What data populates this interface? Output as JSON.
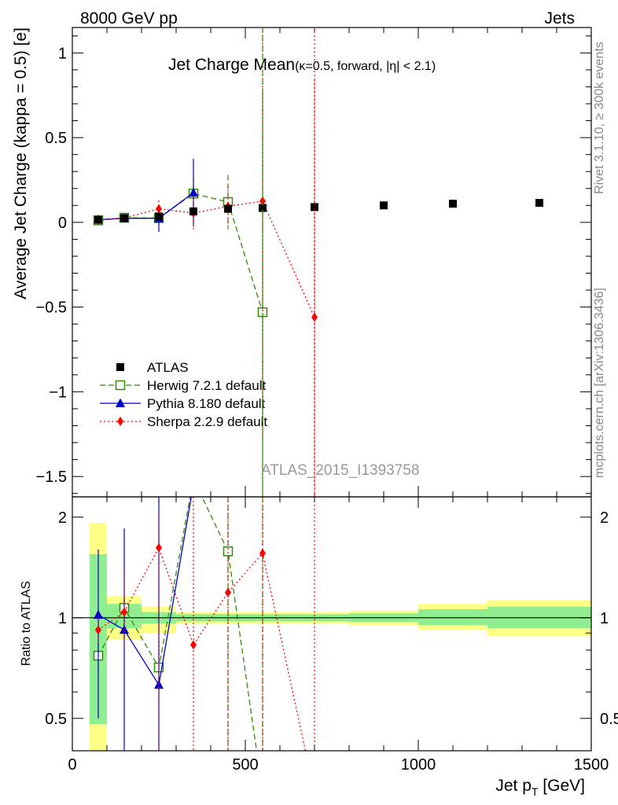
{
  "header": {
    "left": "8000 GeV pp",
    "right": "Jets"
  },
  "side_labels": {
    "rivet": "Rivet 3.1.10, ≥ 300k events",
    "mcplots": "mcplots.cern.ch [arXiv:1306.3436]"
  },
  "watermark": "ATLAS_2015_I1393758",
  "colors": {
    "atlas": "#000000",
    "herwig": "#2e8b08",
    "pythia": "#0000cc",
    "sherpa": "#ff0000",
    "band_inner": "#90ee90",
    "band_outer": "#ffff88"
  },
  "chart_data": [
    {
      "type": "scatter",
      "panel": "main",
      "title": "Jet Charge Mean",
      "subtitle": "(κ=0.5, forward, |η| < 2.1)",
      "ylabel": "Average Jet Charge (kappa = 0.5) [e]",
      "xlim": [
        0,
        1500
      ],
      "ylim": [
        -1.62,
        1.15
      ],
      "yticks": [
        {
          "v": 1,
          "label": "1"
        },
        {
          "v": 0.5,
          "label": "0.5"
        },
        {
          "v": 0,
          "label": "0"
        },
        {
          "v": -0.5,
          "label": "−0.5"
        },
        {
          "v": -1,
          "label": "−1"
        },
        {
          "v": -1.5,
          "label": "−1.5"
        }
      ],
      "legend_position": "lower-left",
      "series": [
        {
          "name": "ATLAS",
          "style": "data",
          "x": [
            75,
            150,
            250,
            350,
            450,
            550,
            700,
            900,
            1100,
            1350
          ],
          "y": [
            0.015,
            0.025,
            0.035,
            0.065,
            0.08,
            0.085,
            0.09,
            0.1,
            0.11,
            0.115
          ],
          "yerr": [
            0.005,
            0.005,
            0.005,
            0.005,
            0.005,
            0.005,
            0.005,
            0.005,
            0.005,
            0.005
          ]
        },
        {
          "name": "Herwig 7.2.1 default",
          "style": "herwig",
          "x": [
            75,
            150,
            250,
            350,
            450,
            550
          ],
          "y": [
            0.012,
            0.027,
            0.025,
            0.17,
            0.12,
            -0.53
          ],
          "yerr": [
            0.01,
            0.015,
            0.05,
            0.1,
            0.16,
            1.3
          ]
        },
        {
          "name": "Pythia 8.180 default",
          "style": "pythia",
          "x": [
            75,
            150,
            250,
            350
          ],
          "y": [
            0.016,
            0.024,
            0.024,
            0.175
          ],
          "yerr": [
            0.01,
            0.02,
            0.08,
            0.2
          ]
        },
        {
          "name": "Sherpa 2.2.9 default",
          "style": "sherpa",
          "x": [
            75,
            150,
            250,
            350,
            450,
            550,
            700
          ],
          "y": [
            0.013,
            0.025,
            0.08,
            0.055,
            0.095,
            0.125,
            -0.56
          ],
          "yerr": [
            0.01,
            0.012,
            0.05,
            0.1,
            0.12,
            1.4,
            1.4
          ]
        }
      ]
    },
    {
      "type": "line",
      "panel": "ratio",
      "ylabel": "Ratio to ATLAS",
      "xlabel": "Jet p_T [GeV]",
      "xlim": [
        0,
        1500
      ],
      "ylim": [
        0.4,
        2.3
      ],
      "log_y": true,
      "yticks": [
        {
          "v": 0.5,
          "label": "0.5"
        },
        {
          "v": 1,
          "label": "1"
        },
        {
          "v": 2,
          "label": "2"
        }
      ],
      "xticks": [
        {
          "v": 0,
          "label": "0"
        },
        {
          "v": 500,
          "label": "500"
        },
        {
          "v": 1000,
          "label": "1000"
        },
        {
          "v": 1500,
          "label": "1500"
        }
      ],
      "bins": [
        {
          "lo": 50,
          "hi": 100,
          "inner": [
            0.48,
            1.55
          ],
          "outer": [
            0.4,
            1.92
          ]
        },
        {
          "lo": 100,
          "hi": 200,
          "inner": [
            0.93,
            1.1
          ],
          "outer": [
            0.86,
            1.16
          ]
        },
        {
          "lo": 200,
          "hi": 300,
          "inner": [
            0.96,
            1.04
          ],
          "outer": [
            0.9,
            1.08
          ]
        },
        {
          "lo": 300,
          "hi": 400,
          "inner": [
            0.975,
            1.025
          ],
          "outer": [
            0.96,
            1.04
          ]
        },
        {
          "lo": 400,
          "hi": 600,
          "inner": [
            0.975,
            1.025
          ],
          "outer": [
            0.96,
            1.04
          ]
        },
        {
          "lo": 600,
          "hi": 800,
          "inner": [
            0.975,
            1.025
          ],
          "outer": [
            0.96,
            1.04
          ]
        },
        {
          "lo": 800,
          "hi": 1000,
          "inner": [
            0.97,
            1.03
          ],
          "outer": [
            0.95,
            1.05
          ]
        },
        {
          "lo": 1000,
          "hi": 1200,
          "inner": [
            0.95,
            1.06
          ],
          "outer": [
            0.92,
            1.1
          ]
        },
        {
          "lo": 1200,
          "hi": 1500,
          "inner": [
            0.93,
            1.08
          ],
          "outer": [
            0.88,
            1.13
          ]
        }
      ],
      "series": [
        {
          "name": "Herwig 7.2.1 default",
          "style": "herwig",
          "x": [
            75,
            150,
            250,
            350,
            450,
            550
          ],
          "y": [
            0.77,
            1.07,
            0.71,
            2.6,
            1.58,
            0.3
          ],
          "ylo": [
            0.7,
            1.0,
            0.6,
            2.3,
            0.4,
            0.3
          ],
          "yhi": [
            0.85,
            1.15,
            0.85,
            2.3,
            2.3,
            2.3
          ]
        },
        {
          "name": "Pythia 8.180 default",
          "style": "pythia",
          "x": [
            75,
            150,
            250,
            350
          ],
          "y": [
            1.02,
            0.92,
            0.63,
            2.5
          ],
          "ylo": [
            0.5,
            0.4,
            0.4,
            2.3
          ],
          "yhi": [
            1.6,
            1.85,
            2.3,
            2.3
          ]
        },
        {
          "name": "Sherpa 2.2.9 default",
          "style": "sherpa",
          "x": [
            75,
            150,
            250,
            350,
            450,
            550,
            700
          ],
          "y": [
            0.92,
            1.04,
            1.62,
            0.83,
            1.19,
            1.56,
            0.3
          ],
          "ylo": [
            0.83,
            0.82,
            0.4,
            0.4,
            0.4,
            0.4,
            0.4
          ],
          "yhi": [
            1.0,
            1.38,
            2.05,
            2.3,
            2.3,
            2.3,
            2.3
          ]
        }
      ]
    }
  ]
}
